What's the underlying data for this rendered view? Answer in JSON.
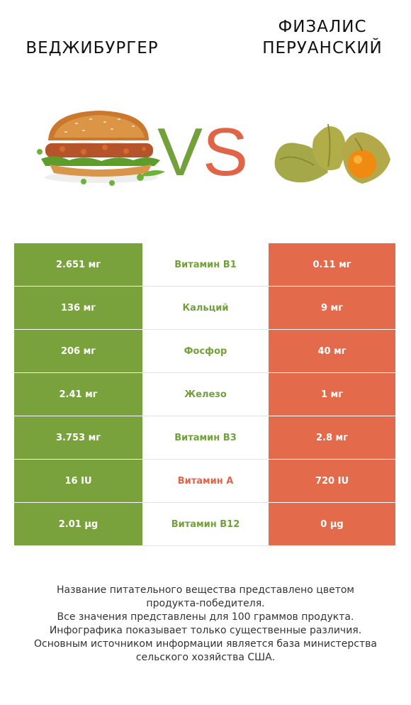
{
  "left_title": "ВЕДЖИБУРГЕР",
  "right_title_line1": "ФИЗАЛИС",
  "right_title_line2": "ПЕРУАНСКИЙ",
  "vs_v": "V",
  "vs_s": "S",
  "colors": {
    "winner_left": "#7aa23c",
    "winner_right": "#e36b4b"
  },
  "rows": [
    {
      "left": "2.651 мг",
      "label": "Витамин B1",
      "right": "0.11 мг",
      "winner": "left"
    },
    {
      "left": "136 мг",
      "label": "Кальций",
      "right": "9 мг",
      "winner": "left"
    },
    {
      "left": "206 мг",
      "label": "Фосфор",
      "right": "40 мг",
      "winner": "left"
    },
    {
      "left": "2.41 мг",
      "label": "Железо",
      "right": "1 мг",
      "winner": "left"
    },
    {
      "left": "3.753 мг",
      "label": "Витамин B3",
      "right": "2.8 мг",
      "winner": "left"
    },
    {
      "left": "16 IU",
      "label": "Витамин A",
      "right": "720 IU",
      "winner": "right"
    },
    {
      "left": "2.01 µg",
      "label": "Витамин B12",
      "right": "0 µg",
      "winner": "left"
    }
  ],
  "footer": [
    "Название питательного вещества представлено цветом",
    "продукта-победителя.",
    "Все значения представлены для 100 граммов продукта.",
    "Инфографика показывает только существенные различия.",
    "Основным источником информации является база министерства",
    "сельского хозяйства США."
  ]
}
